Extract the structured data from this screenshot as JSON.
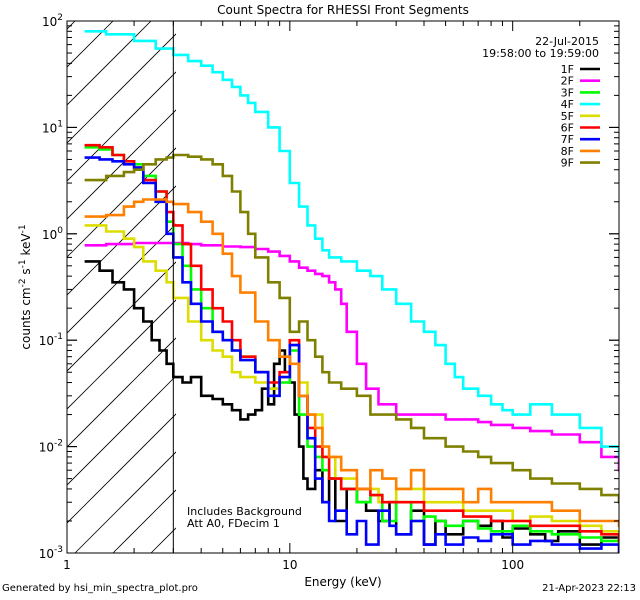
{
  "chart_data": {
    "type": "line",
    "title": "Count Spectra for RHESSI Front Segments",
    "xlabel": "Energy (keV)",
    "ylabel": "counts cm^-2 s^-1 keV^-1",
    "xscale": "log",
    "yscale": "log",
    "xlim": [
      1,
      300
    ],
    "ylim": [
      0.001,
      100
    ],
    "x_tick_labels": [
      {
        "value": 1,
        "label": "1"
      },
      {
        "value": 10,
        "label": "10"
      },
      {
        "value": 100,
        "label": "100"
      }
    ],
    "y_tick_labels": [
      {
        "value": 100,
        "base": "10",
        "exp": "2"
      },
      {
        "value": 10,
        "base": "10",
        "exp": "1"
      },
      {
        "value": 1,
        "base": "10",
        "exp": "0"
      },
      {
        "value": 0.1,
        "base": "10",
        "exp": "-1"
      },
      {
        "value": 0.01,
        "base": "10",
        "exp": "-2"
      },
      {
        "value": 0.001,
        "base": "10",
        "exp": "-3"
      }
    ],
    "hatched_region_xmax": 3,
    "date": "22-Jul-2015",
    "time_range": "19:58:00 to 19:59:00",
    "annotations": [
      "Includes Background",
      "Att A0, FDecim 1"
    ],
    "series": [
      {
        "name": "1F",
        "color": "#000000",
        "x": [
          1.2,
          1.4,
          1.6,
          1.8,
          2,
          2.2,
          2.4,
          2.6,
          2.8,
          3,
          3.3,
          3.6,
          4,
          4.5,
          5,
          5.5,
          6,
          6.5,
          7,
          7.5,
          8,
          8.5,
          9,
          9.5,
          10,
          10.5,
          11,
          11.5,
          12,
          13,
          14,
          15,
          16,
          18,
          20,
          22,
          25,
          28,
          30,
          35,
          40,
          45,
          50,
          60,
          70,
          80,
          90,
          100,
          120,
          140,
          160,
          200,
          250,
          300
        ],
        "y": [
          0.55,
          0.45,
          0.35,
          0.3,
          0.2,
          0.15,
          0.1,
          0.08,
          0.06,
          0.045,
          0.04,
          0.045,
          0.03,
          0.028,
          0.025,
          0.022,
          0.018,
          0.02,
          0.022,
          0.035,
          0.025,
          0.06,
          0.08,
          0.05,
          0.04,
          0.02,
          0.01,
          0.005,
          0.004,
          0.006,
          0.003,
          0.005,
          0.002,
          0.004,
          0.003,
          0.0025,
          0.002,
          0.003,
          0.0015,
          0.0025,
          0.0012,
          0.002,
          0.0015,
          0.002,
          0.0018,
          0.002,
          0.0014,
          0.0017,
          0.0015,
          0.0013,
          0.0016,
          0.0012,
          0.0014,
          0.0012
        ]
      },
      {
        "name": "2F",
        "color": "#ff00ff",
        "x": [
          1.2,
          1.5,
          2,
          2.5,
          3,
          3.5,
          4,
          5,
          6,
          7,
          8,
          9,
          10,
          11,
          12,
          13,
          14,
          15,
          16,
          17,
          18,
          20,
          22,
          25,
          30,
          40,
          50,
          60,
          70,
          80,
          100,
          120,
          150,
          200,
          250,
          300
        ],
        "y": [
          0.78,
          0.8,
          0.82,
          0.82,
          0.82,
          0.8,
          0.78,
          0.76,
          0.75,
          0.72,
          0.68,
          0.62,
          0.55,
          0.48,
          0.45,
          0.42,
          0.4,
          0.35,
          0.3,
          0.22,
          0.12,
          0.06,
          0.035,
          0.025,
          0.02,
          0.02,
          0.018,
          0.018,
          0.017,
          0.016,
          0.015,
          0.014,
          0.013,
          0.011,
          0.008,
          0.006
        ]
      },
      {
        "name": "3F",
        "color": "#00ff00",
        "x": [
          1.2,
          1.4,
          1.6,
          1.8,
          2,
          2.2,
          2.5,
          2.8,
          3,
          3.3,
          3.6,
          4,
          4.5,
          5,
          5.5,
          6,
          7,
          8,
          9,
          10,
          11,
          12,
          13,
          14,
          15,
          17,
          20,
          23,
          26,
          30,
          35,
          40,
          45,
          50,
          60,
          70,
          80,
          100,
          120,
          150,
          200,
          250,
          300
        ],
        "y": [
          6.5,
          6.2,
          5.5,
          4.8,
          4.5,
          3.5,
          2.5,
          1.3,
          0.8,
          0.5,
          0.3,
          0.2,
          0.12,
          0.1,
          0.08,
          0.07,
          0.05,
          0.035,
          0.04,
          0.08,
          0.02,
          0.01,
          0.008,
          0.006,
          0.005,
          0.004,
          0.003,
          0.0035,
          0.002,
          0.003,
          0.002,
          0.0022,
          0.002,
          0.0018,
          0.002,
          0.0017,
          0.0016,
          0.0018,
          0.0016,
          0.0015,
          0.0014,
          0.0013,
          0.0012
        ]
      },
      {
        "name": "4F",
        "color": "#00ffff",
        "x": [
          1.2,
          1.5,
          2,
          2.5,
          3,
          3.5,
          4,
          4.5,
          5,
          5.5,
          6,
          6.5,
          7,
          8,
          9,
          10,
          11,
          12,
          13,
          14,
          15,
          17,
          20,
          23,
          26,
          30,
          35,
          40,
          45,
          50,
          55,
          60,
          70,
          80,
          90,
          100,
          120,
          150,
          200,
          250,
          300
        ],
        "y": [
          80,
          75,
          65,
          55,
          48,
          42,
          38,
          33,
          28,
          24,
          20,
          17,
          14,
          10,
          6,
          3,
          1.8,
          1.2,
          0.9,
          0.7,
          0.6,
          0.55,
          0.45,
          0.4,
          0.3,
          0.22,
          0.15,
          0.12,
          0.09,
          0.06,
          0.045,
          0.035,
          0.03,
          0.025,
          0.022,
          0.02,
          0.025,
          0.02,
          0.015,
          0.01,
          0.008
        ]
      },
      {
        "name": "5F",
        "color": "#dddd00",
        "x": [
          1.2,
          1.5,
          1.8,
          2,
          2.2,
          2.5,
          2.8,
          3,
          3.5,
          4,
          4.5,
          5,
          5.5,
          6,
          7,
          8,
          9,
          10,
          11,
          12,
          14,
          16,
          20,
          25,
          30,
          40,
          50,
          60,
          80,
          100,
          120,
          150,
          200,
          250,
          300
        ],
        "y": [
          1.2,
          1.05,
          0.9,
          0.75,
          0.55,
          0.45,
          0.35,
          0.25,
          0.15,
          0.1,
          0.08,
          0.07,
          0.05,
          0.045,
          0.04,
          0.035,
          0.045,
          0.09,
          0.04,
          0.02,
          0.008,
          0.005,
          0.004,
          0.003,
          0.004,
          0.003,
          0.003,
          0.0025,
          0.0025,
          0.002,
          0.0022,
          0.002,
          0.0018,
          0.0016,
          0.0014
        ]
      },
      {
        "name": "6F",
        "color": "#ff0000",
        "x": [
          1.2,
          1.4,
          1.6,
          1.8,
          2,
          2.2,
          2.5,
          2.8,
          3,
          3.3,
          3.6,
          4,
          4.5,
          5,
          5.5,
          6,
          7,
          8,
          9,
          10,
          11,
          12,
          13,
          14,
          15,
          17,
          20,
          23,
          26,
          30,
          40,
          50,
          60,
          80,
          100,
          120,
          150,
          200,
          250,
          300
        ],
        "y": [
          6.8,
          6.5,
          5.5,
          4.8,
          4.2,
          3.2,
          2.5,
          1.6,
          1.2,
          0.8,
          0.5,
          0.3,
          0.2,
          0.15,
          0.1,
          0.07,
          0.05,
          0.04,
          0.05,
          0.1,
          0.03,
          0.015,
          0.01,
          0.008,
          0.005,
          0.004,
          0.004,
          0.0035,
          0.003,
          0.003,
          0.0025,
          0.0025,
          0.0022,
          0.002,
          0.002,
          0.0018,
          0.0018,
          0.0016,
          0.0015,
          0.0013
        ]
      },
      {
        "name": "7F",
        "color": "#0000ff",
        "x": [
          1.2,
          1.4,
          1.6,
          1.8,
          2,
          2.2,
          2.5,
          2.8,
          3,
          3.3,
          3.6,
          4,
          4.5,
          5,
          5.5,
          6,
          7,
          8,
          9,
          10,
          11,
          12,
          13,
          14,
          15,
          16,
          18,
          20,
          22,
          25,
          28,
          30,
          35,
          40,
          45,
          50,
          60,
          70,
          80,
          100,
          120,
          150,
          200,
          250,
          300
        ],
        "y": [
          5.2,
          5.0,
          4.8,
          4.5,
          4.2,
          3.0,
          2.0,
          1.0,
          0.6,
          0.35,
          0.22,
          0.15,
          0.12,
          0.1,
          0.08,
          0.065,
          0.05,
          0.03,
          0.045,
          0.09,
          0.03,
          0.012,
          0.005,
          0.003,
          0.002,
          0.0025,
          0.0015,
          0.002,
          0.0012,
          0.0025,
          0.0018,
          0.0015,
          0.002,
          0.0012,
          0.0015,
          0.0012,
          0.0014,
          0.0013,
          0.0015,
          0.0012,
          0.0013,
          0.0012,
          0.0011,
          0.0012,
          0.001
        ]
      },
      {
        "name": "8F",
        "color": "#ff8000",
        "x": [
          1.2,
          1.5,
          1.8,
          2,
          2.2,
          2.5,
          2.8,
          3,
          3.5,
          4,
          4.5,
          5,
          5.5,
          6,
          7,
          8,
          9,
          10,
          11,
          12,
          13,
          14,
          15,
          17,
          20,
          23,
          26,
          30,
          35,
          40,
          50,
          60,
          70,
          80,
          100,
          120,
          150,
          200,
          250,
          300
        ],
        "y": [
          1.45,
          1.5,
          1.8,
          2.0,
          2.1,
          2.1,
          2.0,
          1.9,
          1.6,
          1.3,
          1.0,
          0.65,
          0.4,
          0.28,
          0.15,
          0.1,
          0.07,
          0.06,
          0.03,
          0.02,
          0.015,
          0.01,
          0.008,
          0.006,
          0.004,
          0.006,
          0.005,
          0.004,
          0.006,
          0.004,
          0.004,
          0.003,
          0.004,
          0.003,
          0.003,
          0.003,
          0.0025,
          0.002,
          0.002,
          0.0018
        ]
      },
      {
        "name": "9F",
        "color": "#808000",
        "x": [
          1.2,
          1.5,
          1.8,
          2,
          2.2,
          2.5,
          2.8,
          3,
          3.5,
          4,
          4.5,
          5,
          5.5,
          6,
          6.5,
          7,
          8,
          9,
          10,
          11,
          12,
          13,
          14,
          15,
          17,
          20,
          23,
          26,
          30,
          35,
          40,
          50,
          60,
          70,
          80,
          100,
          120,
          150,
          200,
          250,
          300
        ],
        "y": [
          3.2,
          3.5,
          3.8,
          4.0,
          4.5,
          5.0,
          5.2,
          5.5,
          5.3,
          5.0,
          4.5,
          3.5,
          2.5,
          1.6,
          1.0,
          0.6,
          0.35,
          0.25,
          0.12,
          0.15,
          0.1,
          0.07,
          0.05,
          0.04,
          0.035,
          0.03,
          0.02,
          0.02,
          0.018,
          0.015,
          0.012,
          0.01,
          0.009,
          0.008,
          0.007,
          0.006,
          0.005,
          0.0045,
          0.004,
          0.0035,
          0.003
        ]
      }
    ]
  },
  "footer": {
    "left": "Generated by hsi_min_spectra_plot.pro",
    "right": "21-Apr-2023 22:13"
  }
}
